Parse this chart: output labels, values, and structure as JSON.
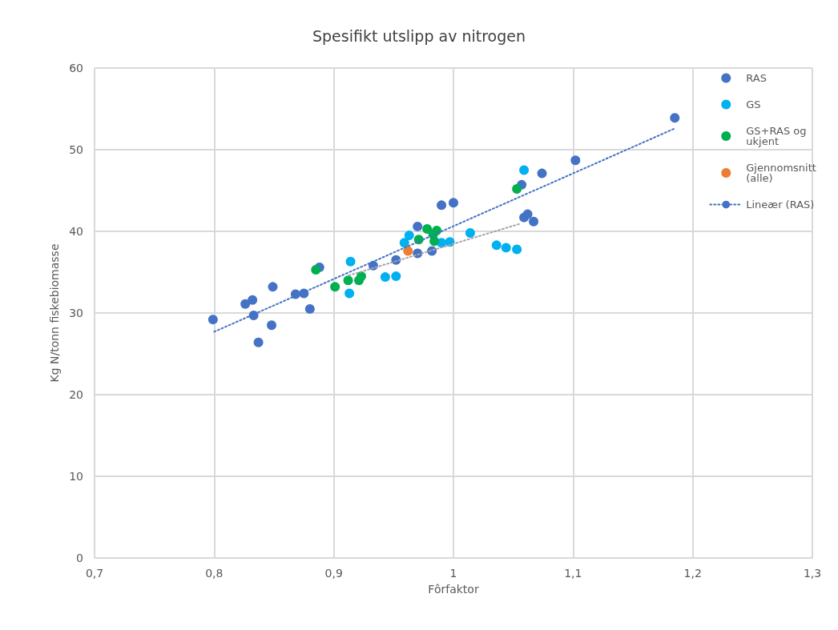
{
  "chart_data": {
    "type": "scatter",
    "title": "Spesifikt utslipp av nitrogen",
    "xlabel": "Fôrfaktor",
    "ylabel": "Kg N/tonn fiskebiomasse",
    "xlim": [
      0.7,
      1.3
    ],
    "xticks": [
      {
        "value": 0.7,
        "label": "0,7"
      },
      {
        "value": 0.8,
        "label": "0,8"
      },
      {
        "value": 0.9,
        "label": "0,9"
      },
      {
        "value": 1,
        "label": "1"
      },
      {
        "value": 1.1,
        "label": "1,1"
      },
      {
        "value": 1.2,
        "label": "1,2"
      },
      {
        "value": 1.3,
        "label": "1,3"
      }
    ],
    "ylim": [
      0,
      60
    ],
    "yticks": [
      0,
      10,
      20,
      30,
      40,
      50,
      60
    ],
    "grid": true,
    "legend": "top right",
    "marker": "circle",
    "series": [
      {
        "name": "RAS",
        "color": "#4472c4",
        "x": [
          0.799,
          0.826,
          0.832,
          0.833,
          0.849,
          0.848,
          0.837,
          0.868,
          0.875,
          0.88,
          0.888,
          0.933,
          0.952,
          0.97,
          0.982,
          0.97,
          0.99,
          1.0,
          1.057,
          1.074,
          1.102,
          1.185,
          1.059,
          1.062,
          1.067
        ],
        "values": [
          29.2,
          31.1,
          31.6,
          29.7,
          33.2,
          28.5,
          26.4,
          32.3,
          32.4,
          30.5,
          35.6,
          35.8,
          36.5,
          37.3,
          37.6,
          40.6,
          43.2,
          43.5,
          45.7,
          47.1,
          48.7,
          53.9,
          41.7,
          42.1,
          41.2
        ]
      },
      {
        "name": "GS",
        "color": "#00b0f0",
        "x": [
          0.914,
          0.913,
          0.943,
          0.952,
          0.959,
          0.963,
          0.99,
          0.997,
          1.014,
          1.036,
          1.044,
          1.053,
          1.059
        ],
        "values": [
          36.3,
          32.4,
          34.4,
          34.5,
          38.6,
          39.5,
          38.6,
          38.7,
          39.8,
          38.3,
          38.0,
          37.8,
          47.5
        ]
      },
      {
        "name": "GS+RAS og ukjent",
        "color": "#00b050",
        "x": [
          0.885,
          0.901,
          0.912,
          0.921,
          0.923,
          0.971,
          0.978,
          0.986,
          0.983,
          0.984,
          1.053
        ],
        "values": [
          35.3,
          33.2,
          34.0,
          34.0,
          34.5,
          39.0,
          40.3,
          40.1,
          39.6,
          38.8,
          45.2
        ]
      },
      {
        "name": "Gjennomsnitt (alle)",
        "color": "#ed7d31",
        "x": [
          0.962
        ],
        "values": [
          37.6
        ]
      },
      {
        "name": "Lineær (RAS)",
        "type": "line",
        "line_style": "dotted",
        "marker": "none",
        "color": "#4472c4",
        "x": [
          0.8,
          1.185
        ],
        "values": [
          27.7,
          52.6
        ]
      },
      {
        "type": "line",
        "line_style": "dotted",
        "marker": "none",
        "color": "#a5a5a5",
        "x": [
          0.9125,
          1.055
        ],
        "values": [
          34.6,
          40.9
        ]
      }
    ]
  }
}
